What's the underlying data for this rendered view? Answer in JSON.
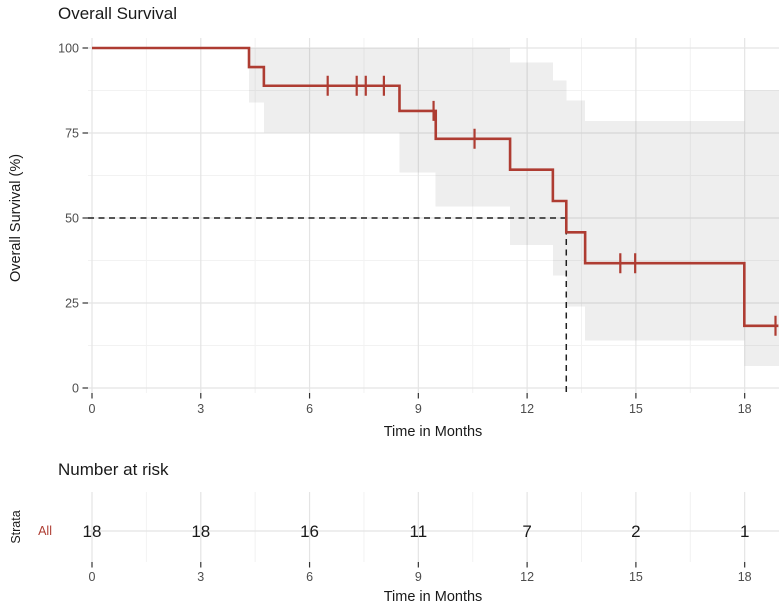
{
  "colors": {
    "curve": "#AE3C32",
    "ci_band": "rgba(125,125,125,0.13)",
    "grid_major": "#E4E4E4",
    "grid_minor": "#F2F2F2",
    "dashed_reference": "#1F1F1F",
    "tick_label": "#4D4D4D",
    "text": "#1A1A1A"
  },
  "chart_data": {
    "type": "line",
    "variant": "kaplan_meier_step_with_ci_band",
    "title": "Overall Survival",
    "xlabel": "Time in Months",
    "ylabel": "Overall Survival (%)",
    "x_ticks": [
      0,
      3,
      6,
      9,
      12,
      15,
      18
    ],
    "y_ticks": [
      0,
      25,
      50,
      75,
      100
    ],
    "xlim": [
      0,
      18.95
    ],
    "ylim": [
      0,
      100
    ],
    "grid": true,
    "legend": "none",
    "series": [
      {
        "name": "All",
        "color": "#AE3C32",
        "steps_time_survivalpct": [
          [
            0,
            100
          ],
          [
            4.33,
            94.4
          ],
          [
            4.74,
            88.9
          ],
          [
            8.48,
            81.5
          ],
          [
            9.48,
            73.3
          ],
          [
            11.53,
            64.2
          ],
          [
            12.71,
            55.0
          ],
          [
            13.08,
            45.8
          ],
          [
            13.6,
            36.7
          ],
          [
            17.99,
            18.3
          ]
        ],
        "curve_end_time": 18.93,
        "censor_marks_time_survivalpct": [
          [
            6.5,
            88.9
          ],
          [
            7.3,
            88.9
          ],
          [
            7.55,
            88.9
          ],
          [
            8.05,
            88.9
          ],
          [
            9.42,
            81.5
          ],
          [
            10.55,
            73.3
          ],
          [
            14.57,
            36.7
          ],
          [
            14.98,
            36.7
          ],
          [
            18.85,
            18.3
          ]
        ],
        "ci_band_t0_t1_upper_lower": [
          [
            4.33,
            4.74,
            100,
            84.0
          ],
          [
            4.74,
            8.48,
            100,
            75.2
          ],
          [
            8.48,
            9.48,
            100,
            63.4
          ],
          [
            9.48,
            11.53,
            100,
            53.4
          ],
          [
            11.53,
            12.71,
            95.7,
            42.1
          ],
          [
            12.71,
            13.08,
            90.5,
            33.1
          ],
          [
            13.08,
            13.6,
            84.5,
            24.0
          ],
          [
            13.6,
            17.99,
            78.5,
            14.0
          ],
          [
            17.99,
            18.95,
            87.7,
            6.5
          ]
        ]
      }
    ],
    "median_reference": {
      "survival_pct": 50,
      "time_months": 13.08
    }
  },
  "risk_table": {
    "title": "Number at risk",
    "strata_axis_label": "Strata",
    "x_axis_title": "Time in Months",
    "times": [
      0,
      3,
      6,
      9,
      12,
      15,
      18
    ],
    "rows": [
      {
        "name": "All",
        "color": "#AE3C32",
        "values": [
          18,
          18,
          16,
          11,
          7,
          2,
          1
        ]
      }
    ]
  }
}
